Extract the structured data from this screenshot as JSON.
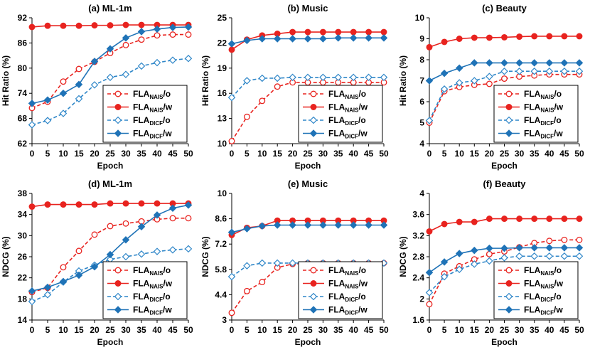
{
  "chart_data": [
    {
      "type": "line",
      "title": "(a) ML-1m",
      "xlabel": "Epoch",
      "ylabel": "Hit Ratio (%)",
      "x": [
        0,
        5,
        10,
        15,
        20,
        25,
        30,
        35,
        40,
        45,
        50
      ],
      "xticks": [
        "0",
        "5",
        "10",
        "15",
        "20",
        "25",
        "30",
        "35",
        "40",
        "45",
        "50"
      ],
      "ylim": [
        62,
        92
      ],
      "yticks": [
        "62",
        "68",
        "74",
        "80",
        "86",
        "92"
      ],
      "legend_position": "bottom-right",
      "series": [
        {
          "name": "FLA",
          "sub": "NAIS",
          "suffix": "/o",
          "values": [
            70.5,
            72.0,
            76.8,
            79.8,
            81.5,
            83.6,
            85.5,
            86.8,
            87.8,
            88.0,
            88.0
          ]
        },
        {
          "name": "FLA",
          "sub": "NAIS",
          "suffix": "/w",
          "values": [
            89.8,
            90.1,
            90.1,
            90.1,
            90.2,
            90.2,
            90.3,
            90.3,
            90.3,
            90.3,
            90.3
          ]
        },
        {
          "name": "FLA",
          "sub": "DICF",
          "suffix": "/o",
          "values": [
            66.5,
            67.5,
            69.2,
            72.7,
            76.0,
            77.8,
            78.5,
            80.5,
            81.3,
            81.9,
            82.3
          ]
        },
        {
          "name": "FLA",
          "sub": "DICF",
          "suffix": "/w",
          "values": [
            71.6,
            72.4,
            74.0,
            76.1,
            81.6,
            84.6,
            87.2,
            88.7,
            89.3,
            89.7,
            89.8
          ]
        }
      ]
    },
    {
      "type": "line",
      "title": "(b) Music",
      "xlabel": "Epoch",
      "ylabel": "Hit Ratio (%)",
      "x": [
        0,
        5,
        10,
        15,
        20,
        25,
        30,
        35,
        40,
        45,
        50
      ],
      "xticks": [
        "0",
        "5",
        "10",
        "15",
        "20",
        "25",
        "30",
        "35",
        "40",
        "45",
        "50"
      ],
      "ylim": [
        10,
        25
      ],
      "yticks": [
        "10",
        "13",
        "16",
        "19",
        "22",
        "25"
      ],
      "legend_position": "bottom-right",
      "series": [
        {
          "name": "FLA",
          "sub": "NAIS",
          "suffix": "/o",
          "values": [
            10.3,
            13.2,
            15.1,
            16.8,
            17.3,
            17.3,
            17.3,
            17.3,
            17.3,
            17.3,
            17.3
          ]
        },
        {
          "name": "FLA",
          "sub": "NAIS",
          "suffix": "/w",
          "values": [
            21.2,
            22.4,
            22.9,
            23.1,
            23.3,
            23.3,
            23.3,
            23.3,
            23.3,
            23.3,
            23.3
          ]
        },
        {
          "name": "FLA",
          "sub": "DICF",
          "suffix": "/o",
          "values": [
            15.5,
            17.5,
            17.8,
            17.8,
            17.9,
            17.9,
            17.9,
            17.9,
            17.9,
            17.9,
            17.9
          ]
        },
        {
          "name": "FLA",
          "sub": "DICF",
          "suffix": "/w",
          "values": [
            21.9,
            22.3,
            22.5,
            22.5,
            22.5,
            22.5,
            22.5,
            22.6,
            22.6,
            22.6,
            22.6
          ]
        }
      ]
    },
    {
      "type": "line",
      "title": "(c) Beauty",
      "xlabel": "Epoch",
      "ylabel": "Hit Ratio (%)",
      "x": [
        0,
        5,
        10,
        15,
        20,
        25,
        30,
        35,
        40,
        45,
        50
      ],
      "xticks": [
        "0",
        "5",
        "10",
        "15",
        "20",
        "25",
        "30",
        "35",
        "40",
        "45",
        "50"
      ],
      "ylim": [
        4,
        10
      ],
      "yticks": [
        "4",
        "5",
        "6",
        "7",
        "8",
        "9",
        "10"
      ],
      "legend_position": "bottom-right",
      "series": [
        {
          "name": "FLA",
          "sub": "NAIS",
          "suffix": "/o",
          "values": [
            5.0,
            6.5,
            6.7,
            6.8,
            6.85,
            7.1,
            7.2,
            7.25,
            7.3,
            7.3,
            7.3
          ]
        },
        {
          "name": "FLA",
          "sub": "NAIS",
          "suffix": "/w",
          "values": [
            8.6,
            8.85,
            9.0,
            9.05,
            9.05,
            9.07,
            9.1,
            9.12,
            9.12,
            9.12,
            9.12
          ]
        },
        {
          "name": "FLA",
          "sub": "DICF",
          "suffix": "/o",
          "values": [
            5.1,
            6.6,
            6.9,
            7.0,
            7.2,
            7.45,
            7.45,
            7.45,
            7.45,
            7.45,
            7.45
          ]
        },
        {
          "name": "FLA",
          "sub": "DICF",
          "suffix": "/w",
          "values": [
            7.0,
            7.35,
            7.6,
            7.85,
            7.85,
            7.85,
            7.85,
            7.85,
            7.85,
            7.85,
            7.85
          ]
        }
      ]
    },
    {
      "type": "line",
      "title": "(d) ML-1m",
      "xlabel": "Epoch",
      "ylabel": "NDCG (%)",
      "x": [
        0,
        5,
        10,
        15,
        20,
        25,
        30,
        35,
        40,
        45,
        50
      ],
      "xticks": [
        "0",
        "5",
        "10",
        "15",
        "20",
        "25",
        "30",
        "35",
        "40",
        "45",
        "50"
      ],
      "ylim": [
        14,
        38
      ],
      "yticks": [
        "14",
        "18",
        "22",
        "26",
        "30",
        "34",
        "38"
      ],
      "legend_position": "bottom-right",
      "series": [
        {
          "name": "FLA",
          "sub": "NAIS",
          "suffix": "/o",
          "values": [
            19.3,
            20.1,
            24.0,
            27.1,
            30.2,
            31.8,
            32.3,
            32.7,
            33.1,
            33.3,
            33.3
          ]
        },
        {
          "name": "FLA",
          "sub": "NAIS",
          "suffix": "/w",
          "values": [
            35.5,
            35.9,
            35.9,
            35.9,
            35.9,
            36.1,
            36.1,
            36.1,
            36.1,
            36.1,
            36.1
          ]
        },
        {
          "name": "FLA",
          "sub": "DICF",
          "suffix": "/o",
          "values": [
            17.5,
            18.8,
            21.2,
            23.3,
            24.4,
            25.5,
            26.0,
            26.5,
            27.0,
            27.3,
            27.5
          ]
        },
        {
          "name": "FLA",
          "sub": "DICF",
          "suffix": "/w",
          "values": [
            19.5,
            20.2,
            21.3,
            22.5,
            24.1,
            26.4,
            29.2,
            31.7,
            33.9,
            35.2,
            35.8
          ]
        }
      ]
    },
    {
      "type": "line",
      "title": "(e) Music",
      "xlabel": "Epoch",
      "ylabel": "NDCG (%)",
      "x": [
        0,
        5,
        10,
        15,
        20,
        25,
        30,
        35,
        40,
        45,
        50
      ],
      "xticks": [
        "0",
        "5",
        "10",
        "15",
        "20",
        "25",
        "30",
        "35",
        "40",
        "45",
        "50"
      ],
      "ylim": [
        3,
        10
      ],
      "yticks": [
        "3",
        "4.4",
        "5.8",
        "7.2",
        "8.6",
        "10"
      ],
      "legend_position": "bottom-right",
      "series": [
        {
          "name": "FLA",
          "sub": "NAIS",
          "suffix": "/o",
          "values": [
            3.4,
            4.6,
            5.1,
            5.9,
            6.1,
            6.15,
            6.15,
            6.15,
            6.15,
            6.15,
            6.15
          ]
        },
        {
          "name": "FLA",
          "sub": "NAIS",
          "suffix": "/w",
          "values": [
            7.7,
            8.1,
            8.2,
            8.5,
            8.5,
            8.5,
            8.5,
            8.5,
            8.5,
            8.5,
            8.5
          ]
        },
        {
          "name": "FLA",
          "sub": "DICF",
          "suffix": "/o",
          "values": [
            5.4,
            6.0,
            6.15,
            6.15,
            6.15,
            6.15,
            6.15,
            6.15,
            6.15,
            6.15,
            6.15
          ]
        },
        {
          "name": "FLA",
          "sub": "DICF",
          "suffix": "/w",
          "values": [
            7.85,
            8.05,
            8.2,
            8.25,
            8.25,
            8.25,
            8.25,
            8.25,
            8.25,
            8.25,
            8.25
          ]
        }
      ]
    },
    {
      "type": "line",
      "title": "(f) Beauty",
      "xlabel": "Epoch",
      "ylabel": "NDCG (%)",
      "x": [
        0,
        5,
        10,
        15,
        20,
        25,
        30,
        35,
        40,
        45,
        50
      ],
      "xticks": [
        "0",
        "5",
        "10",
        "15",
        "20",
        "25",
        "30",
        "35",
        "40",
        "45",
        "50"
      ],
      "ylim": [
        1.6,
        4.0
      ],
      "yticks": [
        "1.6",
        "2",
        "2.4",
        "2.8",
        "3.2",
        "3.6",
        "4"
      ],
      "legend_position": "bottom-right",
      "series": [
        {
          "name": "FLA",
          "sub": "NAIS",
          "suffix": "/o",
          "values": [
            1.9,
            2.48,
            2.62,
            2.75,
            2.85,
            2.9,
            2.98,
            3.06,
            3.1,
            3.12,
            3.12
          ]
        },
        {
          "name": "FLA",
          "sub": "NAIS",
          "suffix": "/w",
          "values": [
            3.28,
            3.42,
            3.46,
            3.46,
            3.52,
            3.52,
            3.52,
            3.52,
            3.52,
            3.52,
            3.52
          ]
        },
        {
          "name": "FLA",
          "sub": "DICF",
          "suffix": "/o",
          "values": [
            2.12,
            2.42,
            2.56,
            2.66,
            2.72,
            2.78,
            2.81,
            2.81,
            2.81,
            2.81,
            2.81
          ]
        },
        {
          "name": "FLA",
          "sub": "DICF",
          "suffix": "/w",
          "values": [
            2.5,
            2.7,
            2.86,
            2.92,
            2.96,
            2.96,
            2.97,
            2.97,
            2.97,
            2.97,
            2.97
          ]
        }
      ]
    }
  ],
  "styles": {
    "series_colors": [
      "#e8231f",
      "#e8231f",
      "#2e86c8",
      "#1f73b7"
    ],
    "series_dashed": [
      true,
      false,
      true,
      false
    ],
    "series_marker": [
      "circle",
      "circle",
      "diamond",
      "diamond"
    ],
    "series_filled": [
      false,
      true,
      false,
      true
    ]
  }
}
